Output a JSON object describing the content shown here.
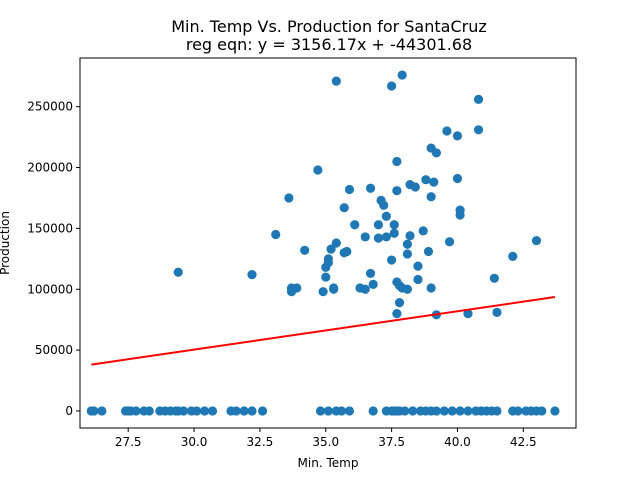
{
  "chart_data": {
    "type": "scatter",
    "title": "Min. Temp Vs. Production for SantaCruz",
    "subtitle": "reg eqn: y = 3156.17x + -44301.68",
    "xlabel": "Min. Temp",
    "ylabel": "Production",
    "xlim": [
      25.67,
      44.5
    ],
    "ylim": [
      -14000,
      290000
    ],
    "xticks": [
      27.5,
      30.0,
      32.5,
      35.0,
      37.5,
      40.0,
      42.5
    ],
    "xtick_labels": [
      "27.5",
      "30.0",
      "32.5",
      "35.0",
      "37.5",
      "40.0",
      "42.5"
    ],
    "yticks": [
      0,
      50000,
      100000,
      150000,
      200000,
      250000
    ],
    "ytick_labels": [
      "0",
      "50000",
      "100000",
      "150000",
      "200000",
      "250000"
    ],
    "grid": false,
    "colors": {
      "points": "#1f77b4",
      "regression": "#ff0000"
    },
    "regression": {
      "slope": 3156.17,
      "intercept": -44301.68,
      "x_range": [
        26.1,
        43.7
      ]
    },
    "points": [
      [
        26.1,
        0
      ],
      [
        26.2,
        0
      ],
      [
        26.5,
        0
      ],
      [
        27.4,
        0
      ],
      [
        27.5,
        0
      ],
      [
        27.6,
        0
      ],
      [
        27.8,
        0
      ],
      [
        28.1,
        0
      ],
      [
        28.3,
        0
      ],
      [
        28.7,
        0
      ],
      [
        28.9,
        0
      ],
      [
        29.1,
        0
      ],
      [
        29.3,
        0
      ],
      [
        29.4,
        0
      ],
      [
        29.6,
        0
      ],
      [
        29.9,
        0
      ],
      [
        30.1,
        0
      ],
      [
        30.4,
        0
      ],
      [
        30.7,
        0
      ],
      [
        31.4,
        0
      ],
      [
        31.6,
        0
      ],
      [
        31.9,
        0
      ],
      [
        32.2,
        0
      ],
      [
        32.6,
        0
      ],
      [
        34.8,
        0
      ],
      [
        35.1,
        0
      ],
      [
        35.4,
        0
      ],
      [
        35.6,
        0
      ],
      [
        35.9,
        0
      ],
      [
        36.8,
        0
      ],
      [
        37.3,
        0
      ],
      [
        37.5,
        0
      ],
      [
        37.6,
        0
      ],
      [
        37.7,
        0
      ],
      [
        37.8,
        0
      ],
      [
        38.0,
        0
      ],
      [
        38.3,
        0
      ],
      [
        38.6,
        0
      ],
      [
        38.8,
        0
      ],
      [
        39.0,
        0
      ],
      [
        39.2,
        0
      ],
      [
        39.5,
        0
      ],
      [
        39.8,
        0
      ],
      [
        40.1,
        0
      ],
      [
        40.4,
        0
      ],
      [
        40.7,
        0
      ],
      [
        40.9,
        0
      ],
      [
        41.1,
        0
      ],
      [
        41.3,
        0
      ],
      [
        41.5,
        0
      ],
      [
        42.1,
        0
      ],
      [
        42.3,
        0
      ],
      [
        42.6,
        0
      ],
      [
        42.8,
        0
      ],
      [
        43.0,
        0
      ],
      [
        43.2,
        0
      ],
      [
        43.7,
        0
      ],
      [
        29.4,
        114000
      ],
      [
        32.2,
        112000
      ],
      [
        33.1,
        145000
      ],
      [
        33.6,
        175000
      ],
      [
        33.7,
        101000
      ],
      [
        33.7,
        98000
      ],
      [
        33.9,
        101000
      ],
      [
        34.2,
        132000
      ],
      [
        34.7,
        198000
      ],
      [
        34.9,
        98000
      ],
      [
        35.0,
        118000
      ],
      [
        35.0,
        110000
      ],
      [
        35.1,
        125000
      ],
      [
        35.1,
        122000
      ],
      [
        35.2,
        133000
      ],
      [
        35.3,
        101000
      ],
      [
        35.3,
        100000
      ],
      [
        35.4,
        138000
      ],
      [
        35.4,
        271000
      ],
      [
        35.7,
        167000
      ],
      [
        35.7,
        130000
      ],
      [
        35.8,
        131000
      ],
      [
        35.9,
        182000
      ],
      [
        36.1,
        153000
      ],
      [
        36.3,
        101000
      ],
      [
        36.5,
        100000
      ],
      [
        36.5,
        143000
      ],
      [
        36.7,
        183000
      ],
      [
        36.7,
        113000
      ],
      [
        36.8,
        104000
      ],
      [
        37.0,
        153000
      ],
      [
        37.0,
        142000
      ],
      [
        37.1,
        173000
      ],
      [
        37.2,
        169000
      ],
      [
        37.3,
        160000
      ],
      [
        37.3,
        143000
      ],
      [
        37.5,
        267000
      ],
      [
        37.5,
        124000
      ],
      [
        37.6,
        146000
      ],
      [
        37.6,
        153000
      ],
      [
        37.7,
        205000
      ],
      [
        37.7,
        181000
      ],
      [
        37.7,
        106000
      ],
      [
        37.8,
        89000
      ],
      [
        37.7,
        80000
      ],
      [
        37.8,
        103000
      ],
      [
        37.9,
        276000
      ],
      [
        37.9,
        101000
      ],
      [
        38.1,
        100000
      ],
      [
        38.1,
        129000
      ],
      [
        38.1,
        137000
      ],
      [
        38.2,
        186000
      ],
      [
        38.2,
        144000
      ],
      [
        38.4,
        184000
      ],
      [
        38.5,
        119000
      ],
      [
        38.5,
        108000
      ],
      [
        38.7,
        148000
      ],
      [
        38.8,
        190000
      ],
      [
        38.9,
        131000
      ],
      [
        39.0,
        216000
      ],
      [
        39.0,
        101000
      ],
      [
        39.0,
        176000
      ],
      [
        39.1,
        188000
      ],
      [
        39.2,
        212000
      ],
      [
        39.2,
        79000
      ],
      [
        39.6,
        230000
      ],
      [
        39.7,
        139000
      ],
      [
        40.0,
        226000
      ],
      [
        40.0,
        191000
      ],
      [
        40.1,
        165000
      ],
      [
        40.1,
        161000
      ],
      [
        40.4,
        80000
      ],
      [
        40.8,
        256000
      ],
      [
        40.8,
        231000
      ],
      [
        41.4,
        109000
      ],
      [
        41.5,
        81000
      ],
      [
        42.1,
        127000
      ],
      [
        43.0,
        140000
      ]
    ]
  }
}
